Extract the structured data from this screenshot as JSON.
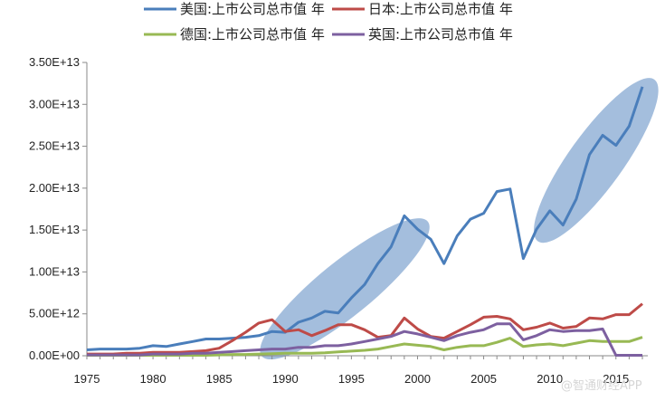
{
  "chart_data": {
    "type": "line",
    "title": "",
    "xlabel": "",
    "ylabel": "",
    "x": [
      1975,
      1976,
      1977,
      1978,
      1979,
      1980,
      1981,
      1982,
      1983,
      1984,
      1985,
      1986,
      1987,
      1988,
      1989,
      1990,
      1991,
      1992,
      1993,
      1994,
      1995,
      1996,
      1997,
      1998,
      1999,
      2000,
      2001,
      2002,
      2003,
      2004,
      2005,
      2006,
      2007,
      2008,
      2009,
      2010,
      2011,
      2012,
      2013,
      2014,
      2015,
      2016,
      2017
    ],
    "xlim": [
      1975,
      2017
    ],
    "x_ticks": [
      1975,
      1980,
      1985,
      1990,
      1995,
      2000,
      2005,
      2010,
      2015
    ],
    "ylim": [
      0,
      35000000000000.0
    ],
    "y_ticks": [
      0,
      5000000000000.0,
      10000000000000.0,
      15000000000000.0,
      20000000000000.0,
      25000000000000.0,
      30000000000000.0,
      35000000000000.0
    ],
    "y_tick_labels": [
      "0.00E+00",
      "5.00E+12",
      "1.00E+13",
      "1.50E+13",
      "2.00E+13",
      "2.50E+13",
      "3.00E+13",
      "3.50E+13"
    ],
    "legend_position": "top",
    "series": [
      {
        "name": "美国:上市公司总市值 年",
        "color": "#4a7ebb",
        "values": [
          700000000000.0,
          800000000000.0,
          800000000000.0,
          800000000000.0,
          900000000000.0,
          1200000000000.0,
          1100000000000.0,
          1400000000000.0,
          1700000000000.0,
          2000000000000.0,
          2000000000000.0,
          2100000000000.0,
          2200000000000.0,
          2400000000000.0,
          2900000000000.0,
          2800000000000.0,
          4000000000000.0,
          4500000000000.0,
          5300000000000.0,
          5100000000000.0,
          6900000000000.0,
          8500000000000.0,
          11000000000000.0,
          13000000000000.0,
          16700000000000.0,
          15100000000000.0,
          13900000000000.0,
          11000000000000.0,
          14300000000000.0,
          16300000000000.0,
          17000000000000.0,
          19600000000000.0,
          19900000000000.0,
          11600000000000.0,
          15100000000000.0,
          17300000000000.0,
          15600000000000.0,
          18700000000000.0,
          24000000000000.0,
          26300000000000.0,
          25100000000000.0,
          27400000000000.0,
          32100000000000.0
        ]
      },
      {
        "name": "日本:上市公司总市值 年",
        "color": "#be4b48",
        "values": [
          200000000000.0,
          200000000000.0,
          200000000000.0,
          300000000000.0,
          300000000000.0,
          400000000000.0,
          400000000000.0,
          400000000000.0,
          500000000000.0,
          600000000000.0,
          900000000000.0,
          1800000000000.0,
          2800000000000.0,
          3900000000000.0,
          4300000000000.0,
          2900000000000.0,
          3100000000000.0,
          2400000000000.0,
          3000000000000.0,
          3700000000000.0,
          3700000000000.0,
          3100000000000.0,
          2200000000000.0,
          2400000000000.0,
          4500000000000.0,
          3200000000000.0,
          2300000000000.0,
          2100000000000.0,
          2900000000000.0,
          3700000000000.0,
          4600000000000.0,
          4700000000000.0,
          4400000000000.0,
          3100000000000.0,
          3400000000000.0,
          3900000000000.0,
          3300000000000.0,
          3500000000000.0,
          4500000000000.0,
          4400000000000.0,
          4900000000000.0,
          4900000000000.0,
          6200000000000.0
        ]
      },
      {
        "name": "德国:上市公司总市值 年",
        "color": "#98b954",
        "values": [
          50000000000.0,
          50000000000.0,
          50000000000.0,
          50000000000.0,
          50000000000.0,
          50000000000.0,
          50000000000.0,
          50000000000.0,
          50000000000.0,
          50000000000.0,
          100000000000.0,
          150000000000.0,
          150000000000.0,
          200000000000.0,
          250000000000.0,
          300000000000.0,
          300000000000.0,
          300000000000.0,
          350000000000.0,
          450000000000.0,
          550000000000.0,
          650000000000.0,
          800000000000.0,
          1100000000000.0,
          1400000000000.0,
          1250000000000.0,
          1100000000000.0,
          700000000000.0,
          1000000000000.0,
          1200000000000.0,
          1200000000000.0,
          1600000000000.0,
          2100000000000.0,
          1100000000000.0,
          1300000000000.0,
          1400000000000.0,
          1200000000000.0,
          1500000000000.0,
          1800000000000.0,
          1700000000000.0,
          1700000000000.0,
          1700000000000.0,
          2200000000000.0
        ]
      },
      {
        "name": "英国:上市公司总市值 年",
        "color": "#7d60a0",
        "values": [
          100000000000.0,
          100000000000.0,
          100000000000.0,
          100000000000.0,
          100000000000.0,
          200000000000.0,
          200000000000.0,
          200000000000.0,
          300000000000.0,
          300000000000.0,
          400000000000.0,
          500000000000.0,
          600000000000.0,
          700000000000.0,
          800000000000.0,
          800000000000.0,
          1000000000000.0,
          1000000000000.0,
          1200000000000.0,
          1200000000000.0,
          1400000000000.0,
          1700000000000.0,
          2000000000000.0,
          2300000000000.0,
          2900000000000.0,
          2600000000000.0,
          2200000000000.0,
          1800000000000.0,
          2400000000000.0,
          2800000000000.0,
          3100000000000.0,
          3800000000000.0,
          3800000000000.0,
          1900000000000.0,
          2400000000000.0,
          3100000000000.0,
          2900000000000.0,
          3000000000000.0,
          3000000000000.0,
          3200000000000.0,
          50000000000.0,
          50000000000.0,
          50000000000.0
        ]
      }
    ],
    "annotations": [
      {
        "type": "ellipse-highlight",
        "color": "#4a7ebb",
        "x_range": [
          1989,
          2000
        ]
      },
      {
        "type": "ellipse-highlight",
        "color": "#4a7ebb",
        "x_range": [
          2010,
          2017
        ]
      }
    ]
  },
  "watermark": "@智通财经APP"
}
